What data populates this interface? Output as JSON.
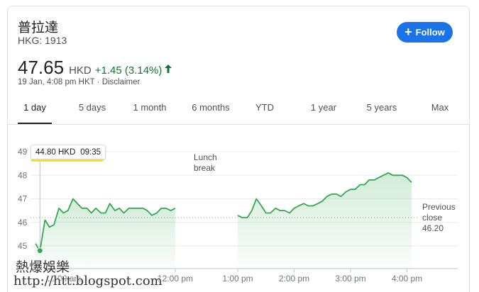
{
  "header": {
    "company": "普拉達",
    "ticker": "HKG: 1913",
    "follow_label": "Follow"
  },
  "quote": {
    "price": "47.65",
    "currency": "HKD",
    "change": "+1.45 (3.14%)",
    "timestamp": "19 Jan, 4:08 pm HKT · ",
    "disclaimer": "Disclaimer"
  },
  "tabs": [
    {
      "label": "1 day",
      "active": true
    },
    {
      "label": "5 days"
    },
    {
      "label": "1 month"
    },
    {
      "label": "6 months"
    },
    {
      "label": "YTD"
    },
    {
      "label": "1 year"
    },
    {
      "label": "5 years"
    },
    {
      "label": "Max"
    }
  ],
  "tooltip": {
    "price": "44.80 HKD",
    "time": "09:35"
  },
  "annotations": {
    "lunch_line1": "Lunch",
    "lunch_line2": "break",
    "prev_line1": "Previous",
    "prev_line2": "close",
    "prev_value": "46.20"
  },
  "watermark": {
    "line1": "熱爆娛樂",
    "line2": "http://htt.blogspot.com"
  },
  "colors": {
    "line": "#34a853",
    "accent": "#1a73e8",
    "positive": "#137333",
    "highlight": "#fce303"
  },
  "chart_data": {
    "type": "area",
    "ylim": [
      44.7,
      49.3
    ],
    "yticks": [
      "49",
      "48",
      "47",
      "46",
      "45"
    ],
    "ytick_values": [
      49,
      48,
      47,
      46,
      45
    ],
    "xticks": [
      {
        "label": "10:00 am",
        "hour": 10
      },
      {
        "label": "12:00 pm",
        "hour": 12
      },
      {
        "label": "1:00 pm",
        "hour": 13
      },
      {
        "label": "2:00 pm",
        "hour": 14
      },
      {
        "label": "3:00 pm",
        "hour": 15
      },
      {
        "label": "4:00 pm",
        "hour": 16
      }
    ],
    "previous_close": 46.2,
    "morning": {
      "x": [
        9.5,
        9.58,
        9.67,
        9.75,
        9.83,
        9.92,
        10.0,
        10.08,
        10.17,
        10.25,
        10.33,
        10.42,
        10.5,
        10.58,
        10.67,
        10.75,
        10.83,
        10.92,
        11.0,
        11.08,
        11.17,
        11.25,
        11.33,
        11.42,
        11.5,
        11.58,
        11.67,
        11.75,
        11.83,
        11.92,
        12.0
      ],
      "y": [
        45.1,
        44.8,
        46.1,
        45.8,
        45.9,
        46.6,
        46.4,
        46.5,
        47.0,
        46.8,
        46.6,
        46.6,
        46.4,
        46.6,
        46.4,
        46.4,
        46.8,
        46.5,
        46.6,
        46.4,
        46.6,
        46.6,
        46.6,
        46.6,
        46.5,
        46.3,
        46.4,
        46.6,
        46.6,
        46.5,
        46.6
      ]
    },
    "afternoon": {
      "x": [
        13.0,
        13.08,
        13.17,
        13.25,
        13.33,
        13.42,
        13.5,
        13.58,
        13.67,
        13.75,
        13.83,
        13.92,
        14.0,
        14.08,
        14.17,
        14.25,
        14.33,
        14.42,
        14.5,
        14.58,
        14.67,
        14.75,
        14.83,
        14.92,
        15.0,
        15.08,
        15.17,
        15.25,
        15.33,
        15.42,
        15.5,
        15.58,
        15.67,
        15.75,
        15.83,
        15.92,
        16.0,
        16.08
      ],
      "y": [
        46.3,
        46.2,
        46.2,
        46.5,
        47.0,
        46.7,
        46.4,
        46.4,
        46.6,
        46.5,
        46.5,
        46.4,
        46.6,
        46.7,
        46.8,
        46.7,
        46.7,
        46.8,
        46.9,
        47.1,
        47.2,
        47.2,
        47.1,
        47.3,
        47.4,
        47.4,
        47.6,
        47.6,
        47.8,
        47.8,
        47.9,
        48.0,
        48.1,
        48.0,
        48.0,
        48.0,
        47.9,
        47.7
      ]
    }
  }
}
